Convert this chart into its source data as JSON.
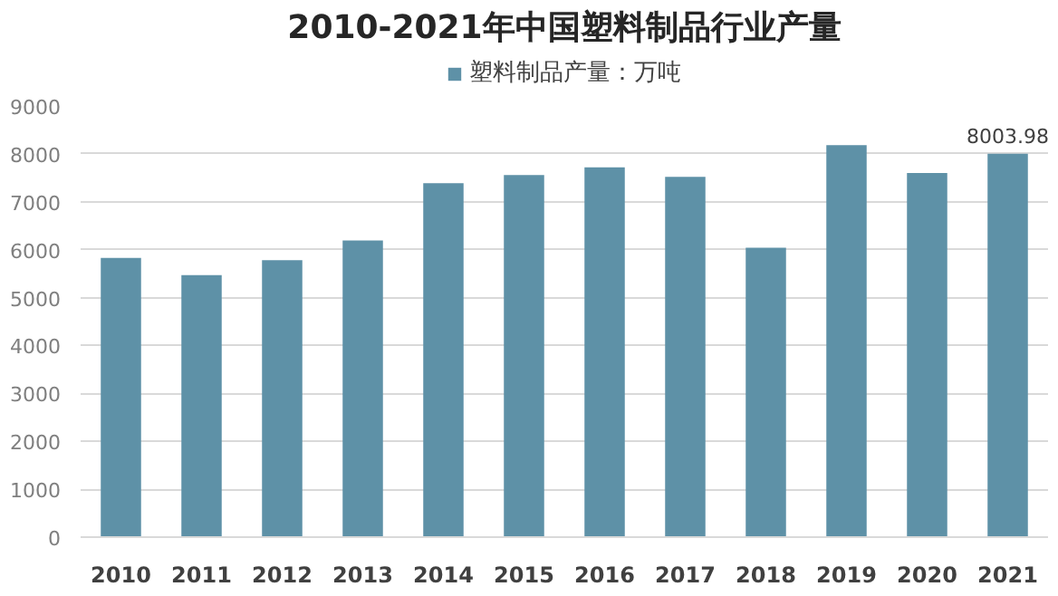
{
  "chart_data": {
    "type": "bar",
    "title": "2010-2021年中国塑料制品行业产量",
    "categories": [
      "2010",
      "2011",
      "2012",
      "2013",
      "2014",
      "2015",
      "2016",
      "2017",
      "2018",
      "2019",
      "2020",
      "2021"
    ],
    "series": [
      {
        "name": "塑料制品产量：万吨",
        "color": "#5e91a7",
        "values": [
          5830,
          5470,
          5780,
          6190,
          7390,
          7560,
          7720,
          7520,
          6040,
          8180,
          7600,
          8003.98
        ],
        "value_labels": [
          null,
          null,
          null,
          null,
          null,
          null,
          null,
          null,
          null,
          null,
          null,
          "8003.98"
        ]
      }
    ],
    "ylim": [
      0,
      9000
    ],
    "yticks": [
      0,
      1000,
      2000,
      3000,
      4000,
      5000,
      6000,
      7000,
      8000,
      9000
    ],
    "grid": "y",
    "legend": "top"
  }
}
